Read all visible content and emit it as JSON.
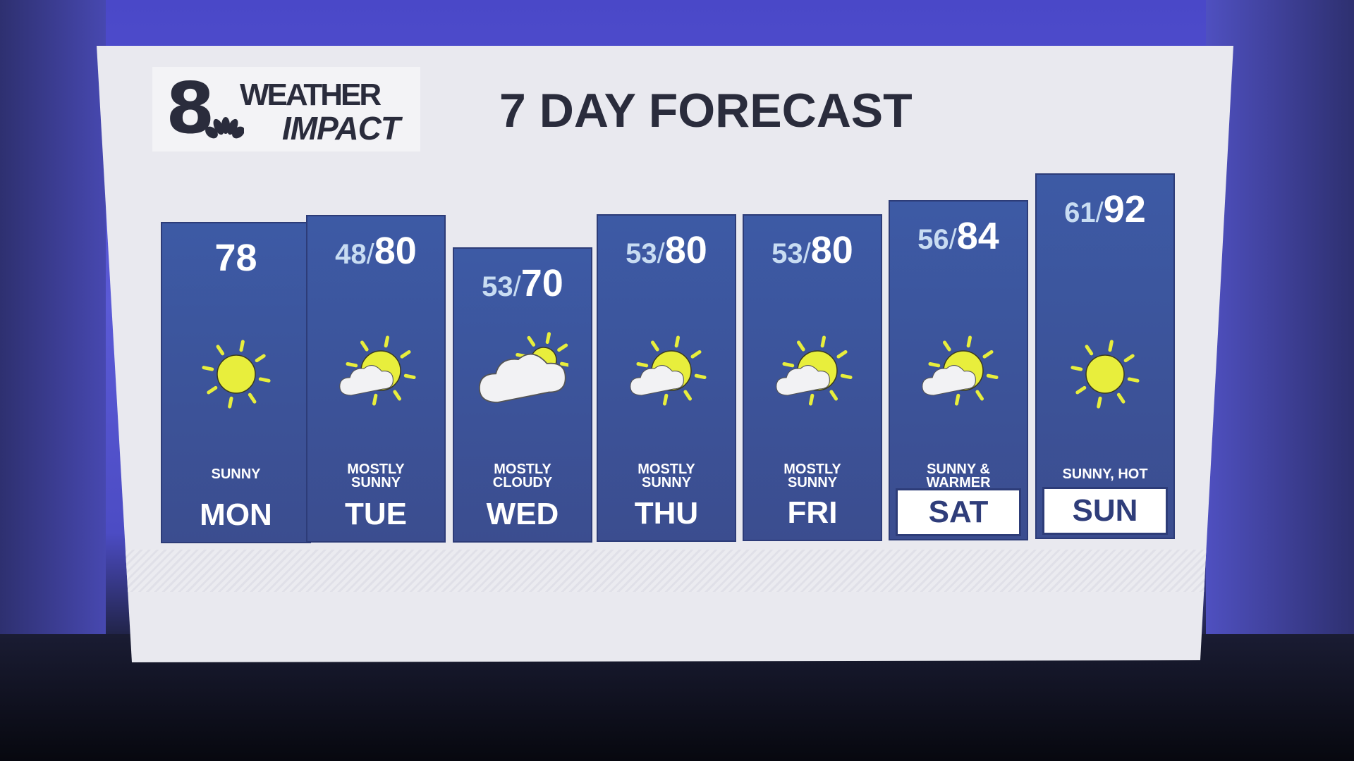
{
  "logo": {
    "number": "8",
    "line1": "WEATHER",
    "line2": "IMPACT"
  },
  "title": "7 DAY FORECAST",
  "colors": {
    "column": "#3d5aa5",
    "sun": "#e8ee3c",
    "cloud": "#f2f2f4",
    "highlight_label": "#ffffff"
  },
  "days": [
    {
      "day": "MON",
      "low": null,
      "high": "78",
      "condition": [
        "SUNNY"
      ],
      "icon": "sun-icon",
      "highlight": false
    },
    {
      "day": "TUE",
      "low": "48",
      "high": "80",
      "condition": [
        "MOSTLY",
        "SUNNY"
      ],
      "icon": "mostly-sunny-icon",
      "highlight": false
    },
    {
      "day": "WED",
      "low": "53",
      "high": "70",
      "condition": [
        "MOSTLY",
        "CLOUDY"
      ],
      "icon": "mostly-cloudy-icon",
      "highlight": false
    },
    {
      "day": "THU",
      "low": "53",
      "high": "80",
      "condition": [
        "MOSTLY",
        "SUNNY"
      ],
      "icon": "mostly-sunny-icon",
      "highlight": false
    },
    {
      "day": "FRI",
      "low": "53",
      "high": "80",
      "condition": [
        "MOSTLY",
        "SUNNY"
      ],
      "icon": "mostly-sunny-icon",
      "highlight": false
    },
    {
      "day": "SAT",
      "low": "56",
      "high": "84",
      "condition": [
        "SUNNY &",
        "WARMER"
      ],
      "icon": "mostly-sunny-icon",
      "highlight": true
    },
    {
      "day": "SUN",
      "low": "61",
      "high": "92",
      "condition": [
        "SUNNY, HOT"
      ],
      "icon": "sun-icon",
      "highlight": true
    }
  ]
}
